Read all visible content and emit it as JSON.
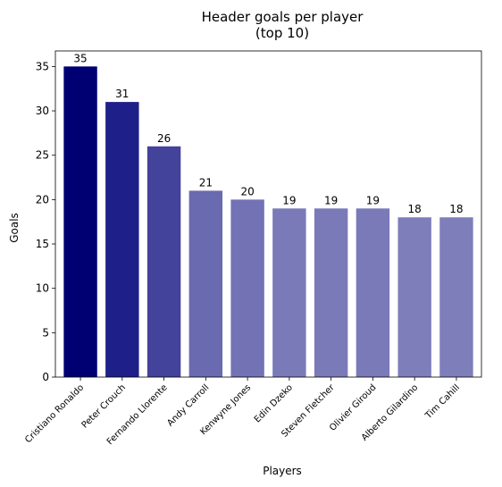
{
  "chart_data": {
    "type": "bar",
    "title_lines": [
      "Header goals per player",
      "(top 10)"
    ],
    "xlabel": "Players",
    "ylabel": "Goals",
    "categories": [
      "Cristiano Ronaldo",
      "Peter Crouch",
      "Fernando Llorente",
      "Andy Carroll",
      "Kenwyne Jones",
      "Edin Dzeko",
      "Steven Fletcher",
      "Olivier Giroud",
      "Alberto Gilardino",
      "Tim Cahill"
    ],
    "values": [
      35,
      31,
      26,
      21,
      20,
      19,
      19,
      19,
      18,
      18
    ],
    "colors": [
      "#000072",
      "#1f1f8a",
      "#43439b",
      "#6a6ab0",
      "#7272b5",
      "#7a7ab8",
      "#7a7ab8",
      "#7a7ab8",
      "#7e7ebb",
      "#7e7ebb"
    ],
    "ylim": [
      0,
      36.75
    ],
    "yticks": [
      0,
      5,
      10,
      15,
      20,
      25,
      30,
      35
    ],
    "grid": false,
    "legend": "none"
  }
}
